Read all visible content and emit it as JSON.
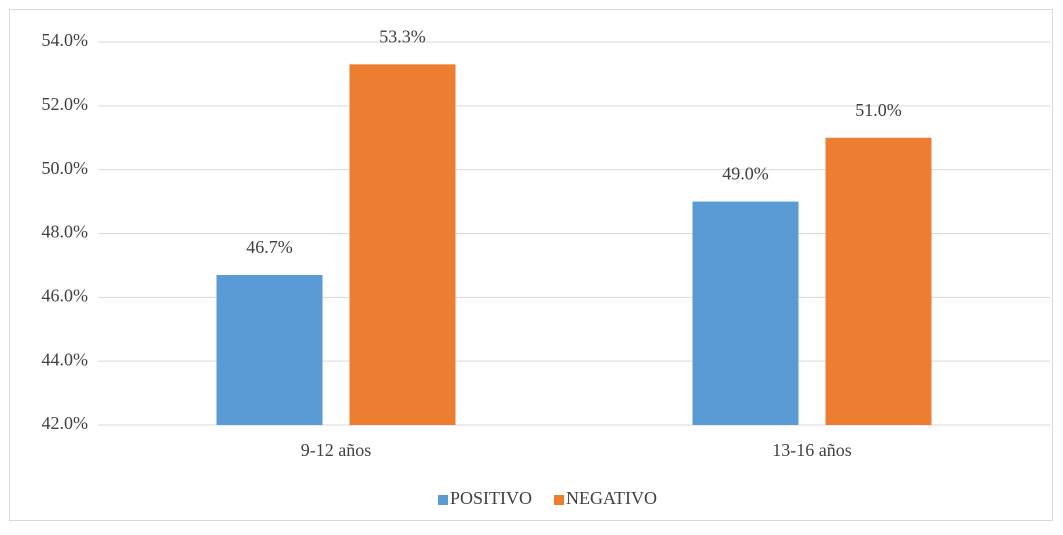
{
  "chart_data": {
    "type": "bar",
    "categories": [
      "9-12 años",
      "13-16 años"
    ],
    "series": [
      {
        "name": "POSITIVO",
        "color": "#5b9bd5",
        "values": [
          46.7,
          49.0
        ],
        "value_labels": [
          "46.7%",
          "49.0%"
        ]
      },
      {
        "name": "NEGATIVO",
        "color": "#ed7d31",
        "values": [
          53.3,
          51.0
        ],
        "value_labels": [
          "53.3%",
          "51.0%"
        ]
      }
    ],
    "ylim": [
      42,
      54
    ],
    "yticks": [
      {
        "value": 42,
        "label": "42.0%"
      },
      {
        "value": 44,
        "label": "44.0%"
      },
      {
        "value": 46,
        "label": "46.0%"
      },
      {
        "value": 48,
        "label": "48.0%"
      },
      {
        "value": 50,
        "label": "50.0%"
      },
      {
        "value": 52,
        "label": "52.0%"
      },
      {
        "value": 54,
        "label": "54.0%"
      }
    ],
    "grid": true,
    "legend": "bottom"
  }
}
